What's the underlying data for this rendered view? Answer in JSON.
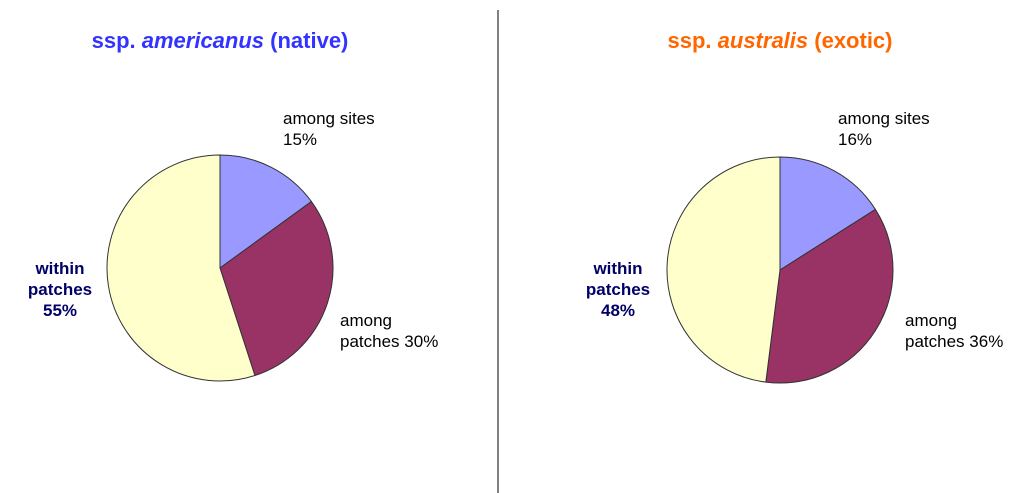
{
  "chart_data": [
    {
      "type": "pie",
      "title": [
        "ssp. ",
        "americanus",
        " (native)"
      ],
      "title_color": "#3333ff",
      "categories": [
        "among sites",
        "among patches",
        "within patches"
      ],
      "values": [
        15,
        30,
        55
      ],
      "value_labels": [
        "15%",
        "30%",
        "55%"
      ],
      "colors": [
        "#9999ff",
        "#993366",
        "#ffffcc"
      ]
    },
    {
      "type": "pie",
      "title": [
        "ssp. ",
        "australis",
        " (exotic)"
      ],
      "title_color": "#ff6600",
      "categories": [
        "among sites",
        "among patches",
        "within patches"
      ],
      "values": [
        16,
        36,
        48
      ],
      "value_labels": [
        "16%",
        "36%",
        "48%"
      ],
      "colors": [
        "#9999ff",
        "#993366",
        "#ffffcc"
      ]
    }
  ]
}
